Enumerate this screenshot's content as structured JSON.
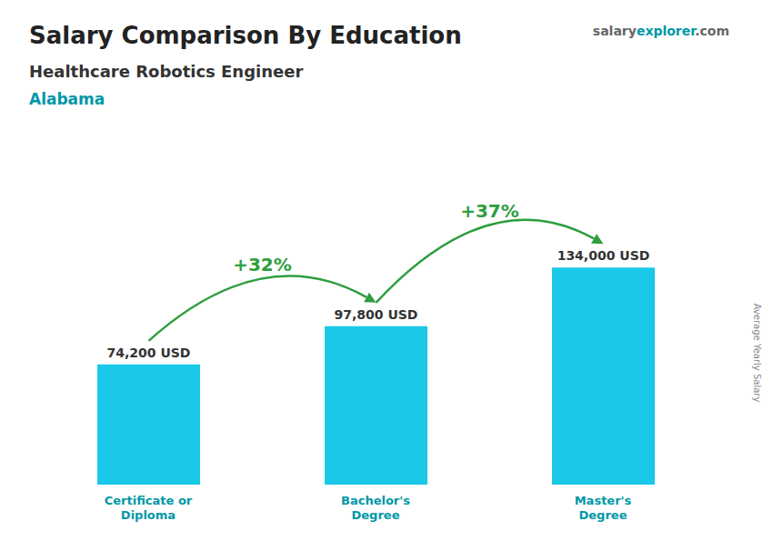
{
  "chart_data": {
    "type": "bar",
    "title": "Salary Comparison By Education",
    "subtitle": [
      "Healthcare Robotics Engineer",
      "Alabama"
    ],
    "categories": [
      "Certificate or\nDiploma",
      "Bachelor's\nDegree",
      "Master's\nDegree"
    ],
    "values": [
      74200,
      97800,
      134000
    ],
    "value_labels": [
      "74,200 USD",
      "97,800 USD",
      "134,000 USD"
    ],
    "data_labels": true,
    "annotations": [
      "+32%",
      "+37%",
      "salary",
      "explorer",
      ".com",
      "Average Yearly Salary"
    ],
    "ylim": [
      0,
      160000
    ],
    "tick_labels": false,
    "grid": false,
    "color": "#1ac8e8"
  }
}
